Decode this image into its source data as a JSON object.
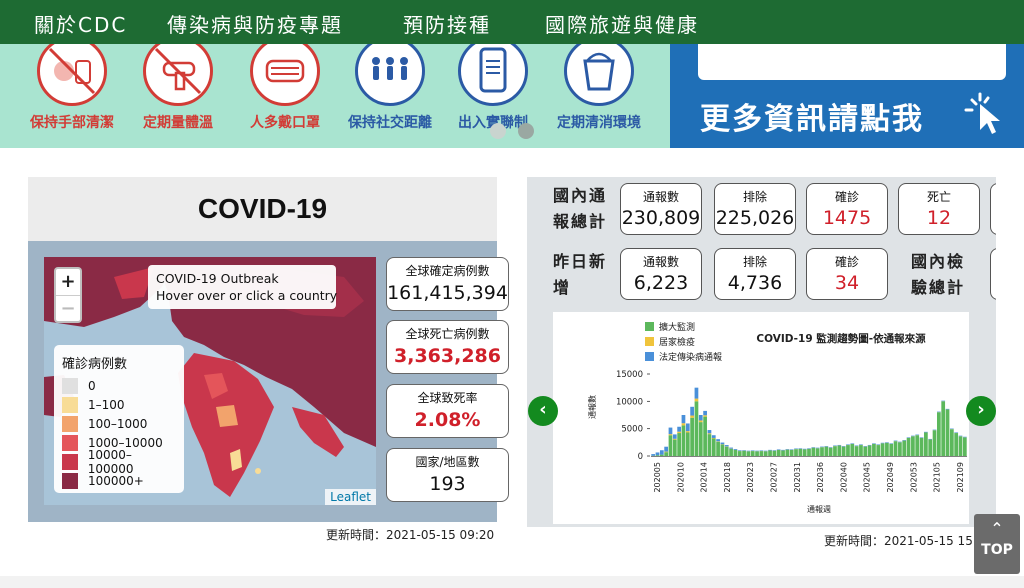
{
  "nav": {
    "items": [
      "關於CDC",
      "傳染病與防疫專題",
      "預防接種",
      "國際旅遊與健康"
    ]
  },
  "banner": {
    "tips": [
      "保持手部清潔",
      "定期量體溫",
      "人多戴口罩",
      "保持社交距離",
      "出入實聯制",
      "定期清消環境"
    ],
    "promo_text": "更多資訊請點我"
  },
  "covid": {
    "title": "COVID-19",
    "map": {
      "zoom_in": "+",
      "zoom_out": "−",
      "info_line1": "COVID-19 Outbreak",
      "info_line2": "Hover over or click a country",
      "legend_title": "確診病例數",
      "legend": [
        {
          "label": "0",
          "color": "#e0e0e0"
        },
        {
          "label": "1–100",
          "color": "#f8dc96"
        },
        {
          "label": "100–1000",
          "color": "#f2a36c"
        },
        {
          "label": "1000–10000",
          "color": "#e4555a"
        },
        {
          "label": "10000–100000",
          "color": "#c9374c"
        },
        {
          "label": "100000+",
          "color": "#8a2a45"
        }
      ],
      "attribution": "Leaflet"
    },
    "stats": [
      {
        "label": "全球確定病例數",
        "value": "161,415,394",
        "red": false
      },
      {
        "label": "全球死亡病例數",
        "value": "3,363,286",
        "red": true
      },
      {
        "label": "全球致死率",
        "value": "2.08%",
        "red": true
      },
      {
        "label": "國家/地區數",
        "value": "193",
        "red": false
      }
    ],
    "updated": "更新時間：2021-05-15 09:20"
  },
  "domestic": {
    "total_label": [
      "國內通",
      "報總計"
    ],
    "yesterday_label": [
      "昨日新",
      "增"
    ],
    "tests_label": [
      "國內檢",
      "驗總計"
    ],
    "totals": [
      {
        "label": "通報數",
        "value": "230,809",
        "red": false
      },
      {
        "label": "排除",
        "value": "225,026",
        "red": false
      },
      {
        "label": "確診",
        "value": "1475",
        "red": true
      },
      {
        "label": "死亡",
        "value": "12",
        "red": true
      }
    ],
    "yesterday": [
      {
        "label": "通報數",
        "value": "6,223",
        "red": false
      },
      {
        "label": "排除",
        "value": "4,736",
        "red": false
      },
      {
        "label": "確診",
        "value": "34",
        "red": true
      }
    ],
    "updated": "更新時間：2021-05-15 15",
    "prev_label": "‹",
    "next_label": "›"
  },
  "chart_data": {
    "type": "bar",
    "title": "COVID-19 監測趨勢圖-依通報來源",
    "xlabel": "通報週",
    "ylabel": "通報數",
    "ylim": [
      0,
      15000
    ],
    "y_ticks": [
      0,
      5000,
      10000,
      15000
    ],
    "y_tick_labels": [
      "0",
      "5000",
      "10000",
      "15000"
    ],
    "x_tick_labels": [
      "202005",
      "202010",
      "202014",
      "202018",
      "202023",
      "202027",
      "202031",
      "202036",
      "202040",
      "202045",
      "202049",
      "202053",
      "202105",
      "202109"
    ],
    "legend_placement": "top-left",
    "series": [
      {
        "name": "擴大監測",
        "color": "#5cb85c",
        "values": [
          50,
          150,
          250,
          700,
          3800,
          3000,
          4200,
          5600,
          4300,
          7000,
          10000,
          6200,
          7200,
          4000,
          3200,
          2600,
          2100,
          1700,
          1300,
          1100,
          900,
          950,
          850,
          900,
          850,
          900,
          850,
          1000,
          950,
          1100,
          1000,
          1150,
          1100,
          1250,
          1300,
          1200,
          1300,
          1500,
          1400,
          1600,
          1700,
          1500,
          1800,
          1900,
          1700,
          2000,
          2200,
          1800,
          2000,
          1700,
          1900,
          2200,
          2000,
          2300,
          2400,
          2200,
          2700,
          2500,
          2800,
          3300,
          3600,
          3800,
          3300,
          4300,
          3000,
          4700,
          8000,
          10000,
          8500,
          4900,
          4200,
          3600,
          3400
        ]
      },
      {
        "name": "居家檢疫",
        "color": "#f0c43c",
        "values": [
          0,
          0,
          0,
          100,
          200,
          150,
          250,
          400,
          250,
          400,
          500,
          300,
          250,
          150,
          100,
          80,
          60,
          50,
          40,
          30,
          20,
          20,
          20,
          20,
          20,
          20,
          20,
          20,
          20,
          20,
          20,
          20,
          20,
          20,
          20,
          20,
          20,
          20,
          20,
          20,
          20,
          20,
          20,
          20,
          20,
          20,
          20,
          20,
          20,
          20,
          20,
          20,
          20,
          20,
          20,
          20,
          20,
          20,
          20,
          20,
          20,
          20,
          20,
          20,
          20,
          20,
          20,
          20,
          20,
          20,
          20,
          20,
          20
        ]
      },
      {
        "name": "法定傳染病通報",
        "color": "#4a90d9",
        "values": [
          300,
          500,
          800,
          900,
          1200,
          800,
          900,
          1500,
          1400,
          1600,
          2000,
          1000,
          800,
          600,
          500,
          400,
          300,
          250,
          200,
          150,
          120,
          100,
          100,
          100,
          100,
          100,
          100,
          100,
          100,
          100,
          100,
          100,
          100,
          100,
          100,
          100,
          100,
          100,
          100,
          100,
          100,
          100,
          100,
          100,
          100,
          100,
          100,
          100,
          100,
          100,
          100,
          100,
          100,
          100,
          100,
          100,
          100,
          100,
          100,
          100,
          100,
          100,
          100,
          100,
          100,
          100,
          100,
          100,
          100,
          100,
          100,
          100,
          100
        ]
      }
    ]
  },
  "top_button": {
    "arrow": "⌃",
    "label": "TOP"
  },
  "colors": {
    "nav_bg": "#1e6b33",
    "banner_bg": "#a9e4d0",
    "promo_bg": "#1f6fb7",
    "alert_red": "#d0202a",
    "arrow_green": "#138a1f"
  }
}
